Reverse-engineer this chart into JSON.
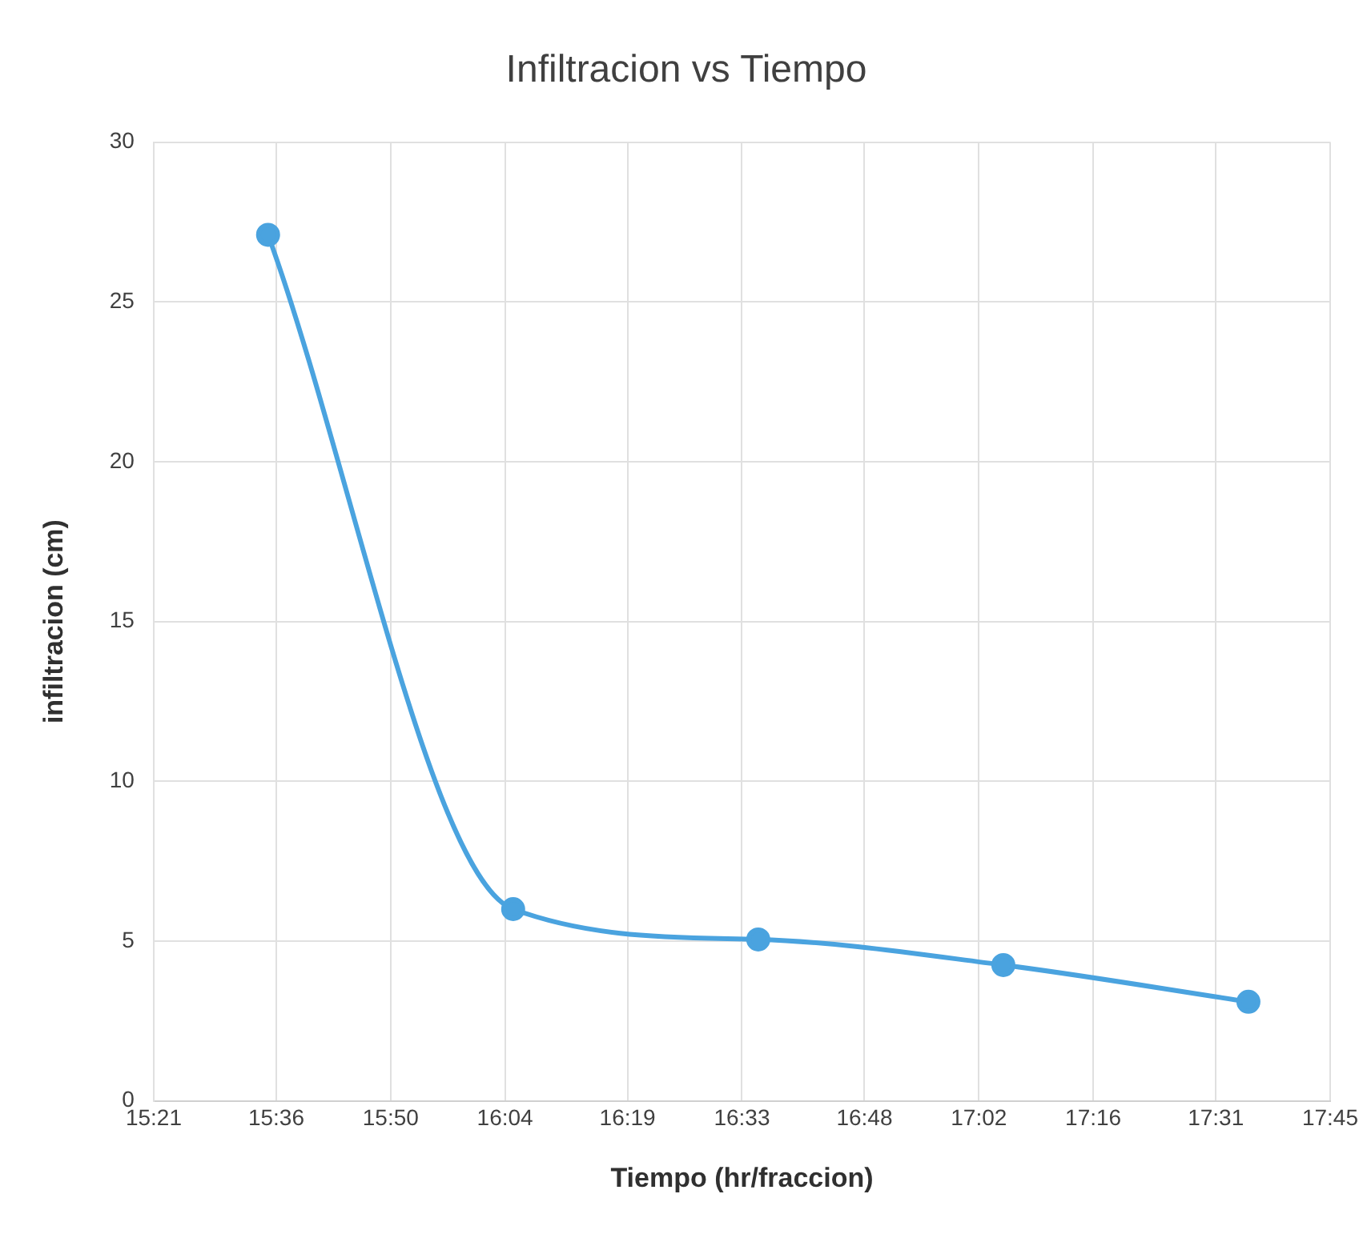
{
  "chart_data": {
    "type": "line",
    "title": "Infiltracion vs Tiempo",
    "xlabel": "Tiempo (hr/fraccion)",
    "ylabel": "infiltracion (cm)",
    "x": [
      15.5833,
      16.0833,
      16.5833,
      17.0833,
      17.5833
    ],
    "series": [
      {
        "color": "#4aa3df",
        "values": [
          27.1,
          6.0,
          5.05,
          4.25,
          3.1
        ]
      }
    ],
    "xlim": [
      15.35,
      17.75
    ],
    "xticks": [
      {
        "value": 15.35,
        "label": "15:21"
      },
      {
        "value": 15.6,
        "label": "15:36"
      },
      {
        "value": 15.8333,
        "label": "15:50"
      },
      {
        "value": 16.0667,
        "label": "16:04"
      },
      {
        "value": 16.3167,
        "label": "16:19"
      },
      {
        "value": 16.55,
        "label": "16:33"
      },
      {
        "value": 16.8,
        "label": "16:48"
      },
      {
        "value": 17.0333,
        "label": "17:02"
      },
      {
        "value": 17.2667,
        "label": "17:16"
      },
      {
        "value": 17.5167,
        "label": "17:31"
      },
      {
        "value": 17.75,
        "label": "17:45"
      }
    ],
    "ylim": [
      0,
      30
    ],
    "yticks": [
      0,
      5,
      10,
      15,
      20,
      25,
      30
    ],
    "grid": true,
    "legend": false,
    "marker": "circle",
    "line_style": "solid"
  }
}
